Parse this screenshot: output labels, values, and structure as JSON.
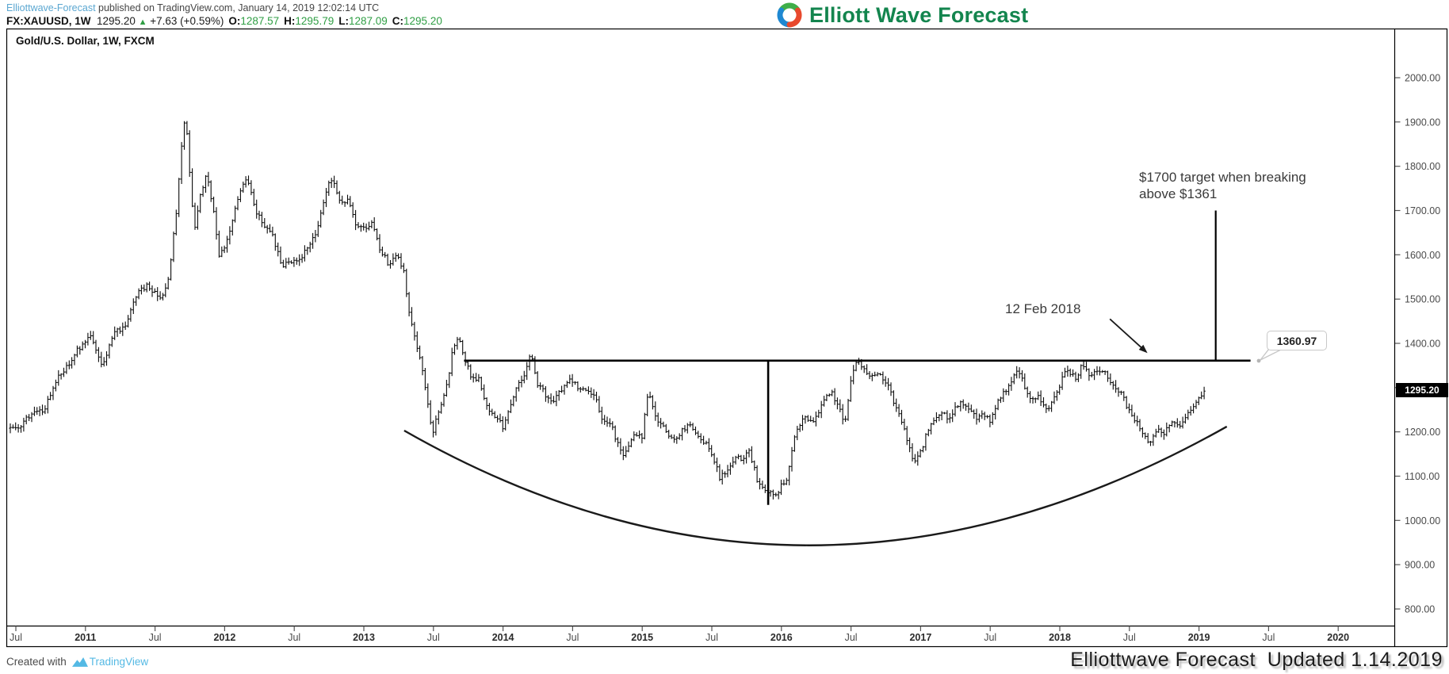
{
  "header": {
    "byline_name": "Elliottwave-Forecast",
    "byline_rest": " published on TradingView.com, January 14, 2019 12:02:14 UTC",
    "symbol": "FX:XAUUSD, 1W",
    "last_price": "1295.20",
    "up_arrow": "▲",
    "change": "+7.63 (+0.59%)",
    "o_label": "O:",
    "o_value": "1287.57",
    "h_label": "H:",
    "h_value": "1295.79",
    "l_label": "L:",
    "l_value": "1287.09",
    "c_label": "C:",
    "c_value": "1295.20"
  },
  "brand": {
    "name": "Elliott Wave Forecast"
  },
  "chart": {
    "title": "Gold/U.S. Dollar, 1W, FXCM",
    "price_axis_labels": [
      "2000.00",
      "1900.00",
      "1800.00",
      "1700.00",
      "1600.00",
      "1500.00",
      "1400.00",
      "1300.00",
      "1200.00",
      "1100.00",
      "1000.00",
      "900.00",
      "800.00"
    ],
    "time_axis_labels": [
      "Jul",
      "2011",
      "Jul",
      "2012",
      "Jul",
      "2013",
      "Jul",
      "2014",
      "Jul",
      "2015",
      "Jul",
      "2016",
      "Jul",
      "2017",
      "Jul",
      "2018",
      "Jul",
      "2019",
      "Jul",
      "2020"
    ],
    "last_price_badge": "1295.20",
    "annotations": {
      "date_label": "12 Feb 2018",
      "target_line1": "$1700 target when breaking",
      "target_line2": "above $1361",
      "price_callout": "1360.97"
    }
  },
  "footer": {
    "created_with": "Created with",
    "tradingview": "TradingView",
    "watermark": "Elliottwave Forecast  Updated 1.14.2019"
  },
  "colors": {
    "bar": "#0a0a0a",
    "overlay": "#1a1a1a",
    "axis_text": "#4a4a4a",
    "green": "#2f9e44",
    "link_blue": "#5ba7d1",
    "tv_blue": "#54b9e4",
    "brand_green": "#13854e"
  },
  "chart_data": {
    "type": "ohlc-bar",
    "symbol": "XAUUSD",
    "timeframe": "1W",
    "title": "Gold/U.S. Dollar, 1W, FXCM",
    "last_price": 1295.2,
    "price_ticks": [
      2000,
      1900,
      1800,
      1700,
      1600,
      1500,
      1400,
      1300,
      1200,
      1100,
      1000,
      900,
      800
    ],
    "time_ticks_start_year": 2010.5,
    "time_ticks_step_years": 0.5,
    "ylim": [
      760,
      2060
    ],
    "xlim": [
      2010.4,
      2020.4
    ],
    "grid": "off",
    "t_start": 2010.46,
    "t_end": 2019.05,
    "bars_per_year": 52,
    "anchors": [
      [
        2010.46,
        1205
      ],
      [
        2010.54,
        1215
      ],
      [
        2010.62,
        1245
      ],
      [
        2010.7,
        1248
      ],
      [
        2010.78,
        1312
      ],
      [
        2010.87,
        1348
      ],
      [
        2010.95,
        1388
      ],
      [
        2011.04,
        1415
      ],
      [
        2011.12,
        1345
      ],
      [
        2011.2,
        1418
      ],
      [
        2011.29,
        1445
      ],
      [
        2011.37,
        1512
      ],
      [
        2011.45,
        1530
      ],
      [
        2011.54,
        1498
      ],
      [
        2011.6,
        1550
      ],
      [
        2011.66,
        1720
      ],
      [
        2011.7,
        1882
      ],
      [
        2011.72,
        1912
      ],
      [
        2011.75,
        1780
      ],
      [
        2011.78,
        1655
      ],
      [
        2011.83,
        1742
      ],
      [
        2011.87,
        1780
      ],
      [
        2011.92,
        1700
      ],
      [
        2011.96,
        1595
      ],
      [
        2012.0,
        1615
      ],
      [
        2012.04,
        1655
      ],
      [
        2012.1,
        1735
      ],
      [
        2012.16,
        1775
      ],
      [
        2012.22,
        1700
      ],
      [
        2012.29,
        1662
      ],
      [
        2012.35,
        1640
      ],
      [
        2012.41,
        1570
      ],
      [
        2012.47,
        1585
      ],
      [
        2012.54,
        1590
      ],
      [
        2012.6,
        1615
      ],
      [
        2012.66,
        1648
      ],
      [
        2012.72,
        1735
      ],
      [
        2012.77,
        1775
      ],
      [
        2012.83,
        1715
      ],
      [
        2012.89,
        1728
      ],
      [
        2012.95,
        1660
      ],
      [
        2013.0,
        1658
      ],
      [
        2013.06,
        1668
      ],
      [
        2013.12,
        1610
      ],
      [
        2013.18,
        1578
      ],
      [
        2013.24,
        1598
      ],
      [
        2013.29,
        1560
      ],
      [
        2013.32,
        1480
      ],
      [
        2013.36,
        1420
      ],
      [
        2013.41,
        1360
      ],
      [
        2013.45,
        1282
      ],
      [
        2013.49,
        1192
      ],
      [
        2013.54,
        1250
      ],
      [
        2013.6,
        1310
      ],
      [
        2013.64,
        1390
      ],
      [
        2013.68,
        1418
      ],
      [
        2013.72,
        1362
      ],
      [
        2013.77,
        1328
      ],
      [
        2013.83,
        1318
      ],
      [
        2013.89,
        1248
      ],
      [
        2013.95,
        1232
      ],
      [
        2014.0,
        1212
      ],
      [
        2014.04,
        1248
      ],
      [
        2014.1,
        1302
      ],
      [
        2014.16,
        1328
      ],
      [
        2014.2,
        1382
      ],
      [
        2014.24,
        1310
      ],
      [
        2014.29,
        1292
      ],
      [
        2014.35,
        1262
      ],
      [
        2014.41,
        1292
      ],
      [
        2014.47,
        1316
      ],
      [
        2014.54,
        1302
      ],
      [
        2014.6,
        1288
      ],
      [
        2014.66,
        1282
      ],
      [
        2014.72,
        1218
      ],
      [
        2014.77,
        1222
      ],
      [
        2014.83,
        1168
      ],
      [
        2014.87,
        1142
      ],
      [
        2014.93,
        1192
      ],
      [
        2015.0,
        1188
      ],
      [
        2015.04,
        1292
      ],
      [
        2015.1,
        1232
      ],
      [
        2015.16,
        1205
      ],
      [
        2015.22,
        1180
      ],
      [
        2015.29,
        1202
      ],
      [
        2015.35,
        1218
      ],
      [
        2015.41,
        1182
      ],
      [
        2015.47,
        1172
      ],
      [
        2015.52,
        1132
      ],
      [
        2015.56,
        1095
      ],
      [
        2015.62,
        1118
      ],
      [
        2015.68,
        1152
      ],
      [
        2015.72,
        1135
      ],
      [
        2015.77,
        1158
      ],
      [
        2015.83,
        1088
      ],
      [
        2015.89,
        1068
      ],
      [
        2015.95,
        1052
      ],
      [
        2016.0,
        1078
      ],
      [
        2016.04,
        1098
      ],
      [
        2016.1,
        1192
      ],
      [
        2016.16,
        1238
      ],
      [
        2016.22,
        1222
      ],
      [
        2016.29,
        1258
      ],
      [
        2016.35,
        1292
      ],
      [
        2016.41,
        1262
      ],
      [
        2016.45,
        1212
      ],
      [
        2016.5,
        1322
      ],
      [
        2016.54,
        1366
      ],
      [
        2016.58,
        1342
      ],
      [
        2016.64,
        1322
      ],
      [
        2016.7,
        1328
      ],
      [
        2016.77,
        1308
      ],
      [
        2016.81,
        1258
      ],
      [
        2016.87,
        1222
      ],
      [
        2016.91,
        1172
      ],
      [
        2016.95,
        1135
      ],
      [
        2017.0,
        1152
      ],
      [
        2017.04,
        1192
      ],
      [
        2017.1,
        1232
      ],
      [
        2017.16,
        1248
      ],
      [
        2017.2,
        1228
      ],
      [
        2017.24,
        1252
      ],
      [
        2017.29,
        1268
      ],
      [
        2017.35,
        1252
      ],
      [
        2017.41,
        1228
      ],
      [
        2017.45,
        1242
      ],
      [
        2017.5,
        1222
      ],
      [
        2017.54,
        1258
      ],
      [
        2017.6,
        1288
      ],
      [
        2017.66,
        1322
      ],
      [
        2017.7,
        1342
      ],
      [
        2017.74,
        1310
      ],
      [
        2017.79,
        1272
      ],
      [
        2017.85,
        1278
      ],
      [
        2017.91,
        1252
      ],
      [
        2017.95,
        1268
      ],
      [
        2018.0,
        1308
      ],
      [
        2018.04,
        1342
      ],
      [
        2018.08,
        1332
      ],
      [
        2018.12,
        1322
      ],
      [
        2018.16,
        1352
      ],
      [
        2018.22,
        1322
      ],
      [
        2018.27,
        1342
      ],
      [
        2018.32,
        1338
      ],
      [
        2018.37,
        1302
      ],
      [
        2018.43,
        1292
      ],
      [
        2018.49,
        1252
      ],
      [
        2018.54,
        1228
      ],
      [
        2018.6,
        1195
      ],
      [
        2018.64,
        1178
      ],
      [
        2018.7,
        1202
      ],
      [
        2018.75,
        1198
      ],
      [
        2018.81,
        1222
      ],
      [
        2018.87,
        1212
      ],
      [
        2018.91,
        1232
      ],
      [
        2018.95,
        1258
      ],
      [
        2019.0,
        1282
      ],
      [
        2019.04,
        1293
      ]
    ],
    "resistance_line": {
      "price": 1360.97,
      "t_start": 2013.72,
      "t_end": 2019.37,
      "label": "1360.97"
    },
    "target_line": {
      "t": 2019.12,
      "price_top": 1700,
      "price_bottom": 1361
    },
    "drop_line": {
      "t": 2015.905,
      "price_top": 1361,
      "price_bottom": 1035
    },
    "arc": {
      "t": [
        2013.29,
        2016.2,
        2019.2
      ],
      "price": [
        1203,
        680,
        1212
      ],
      "shape": "quadratic-bezier"
    },
    "arrow": {
      "from_t": 2018.36,
      "from_price": 1455,
      "to_t": 2018.63,
      "to_price": 1378
    }
  }
}
